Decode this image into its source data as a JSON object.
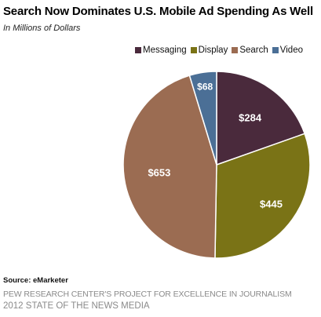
{
  "chart_data": {
    "type": "pie",
    "title": "Search Now Dominates U.S. Mobile Ad Spending As Well",
    "subtitle": "In Millions of Dollars",
    "categories": [
      "Messaging",
      "Display",
      "Search",
      "Video"
    ],
    "values": [
      284,
      445,
      653,
      68
    ],
    "value_labels": [
      "$284",
      "$445",
      "$653",
      "$68"
    ],
    "colors": [
      "#4a2a3c",
      "#7a7316",
      "#9b6c52",
      "#4b6f96"
    ],
    "legend_position": "top-right",
    "start_angle_deg": 0,
    "direction": "clockwise"
  },
  "source_text": "Source: eMarketer",
  "credit_line1": "PEW RESEARCH CENTER'S PROJECT FOR EXCELLENCE IN JOURNALISM",
  "credit_line2": "2012 STATE OF THE NEWS MEDIA"
}
